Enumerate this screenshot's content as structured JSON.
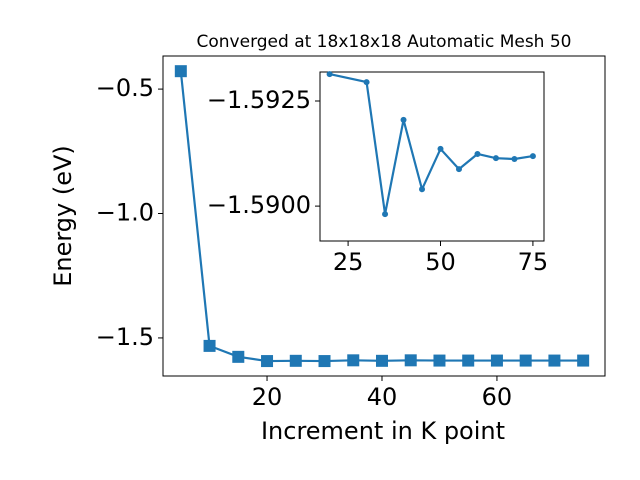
{
  "chart_data": [
    {
      "type": "line",
      "title": "Converged at 18x18x18 Automatic Mesh 50",
      "x_label": "Increment in K point",
      "y_label": "Energy (eV)",
      "x": [
        5,
        10,
        15,
        20,
        25,
        30,
        35,
        40,
        45,
        50,
        55,
        60,
        65,
        70,
        75
      ],
      "series": [
        {
          "color": "#1f77b4",
          "marker": "square",
          "values": [
            -0.428,
            -1.532,
            -1.576,
            -1.593,
            -1.592,
            -1.593,
            -1.59,
            -1.592,
            -1.59,
            -1.591,
            -1.591,
            -1.591,
            -1.591,
            -1.591,
            -1.591
          ]
        }
      ],
      "xlim": [
        1.9,
        78.8
      ],
      "ylim": [
        -1.653,
        -0.367
      ],
      "xticks": [
        20,
        40,
        60
      ],
      "yticks": [
        {
          "value": -1.5,
          "label": "−1.5"
        },
        {
          "value": -1.0,
          "label": "−1.0"
        },
        {
          "value": -0.5,
          "label": "−0.5"
        }
      ]
    },
    {
      "type": "line",
      "x": [
        20,
        30,
        35,
        40,
        45,
        50,
        55,
        60,
        65,
        70,
        75
      ],
      "series": [
        {
          "color": "#1f77b4",
          "marker": "circle",
          "values": [
            -1.59314,
            -1.59295,
            -1.58981,
            -1.59205,
            -1.5904,
            -1.59136,
            -1.59088,
            -1.59124,
            -1.59114,
            -1.59112,
            -1.59119
          ]
        }
      ],
      "xlim": [
        17.4,
        78.0
      ],
      "ylim": [
        -1.58917,
        -1.59319
      ],
      "xticks": [
        25,
        50,
        75
      ],
      "yticks": [
        {
          "value": -1.59,
          "label": "−1.5900"
        },
        {
          "value": -1.5925,
          "label": "−1.5925"
        }
      ]
    }
  ]
}
